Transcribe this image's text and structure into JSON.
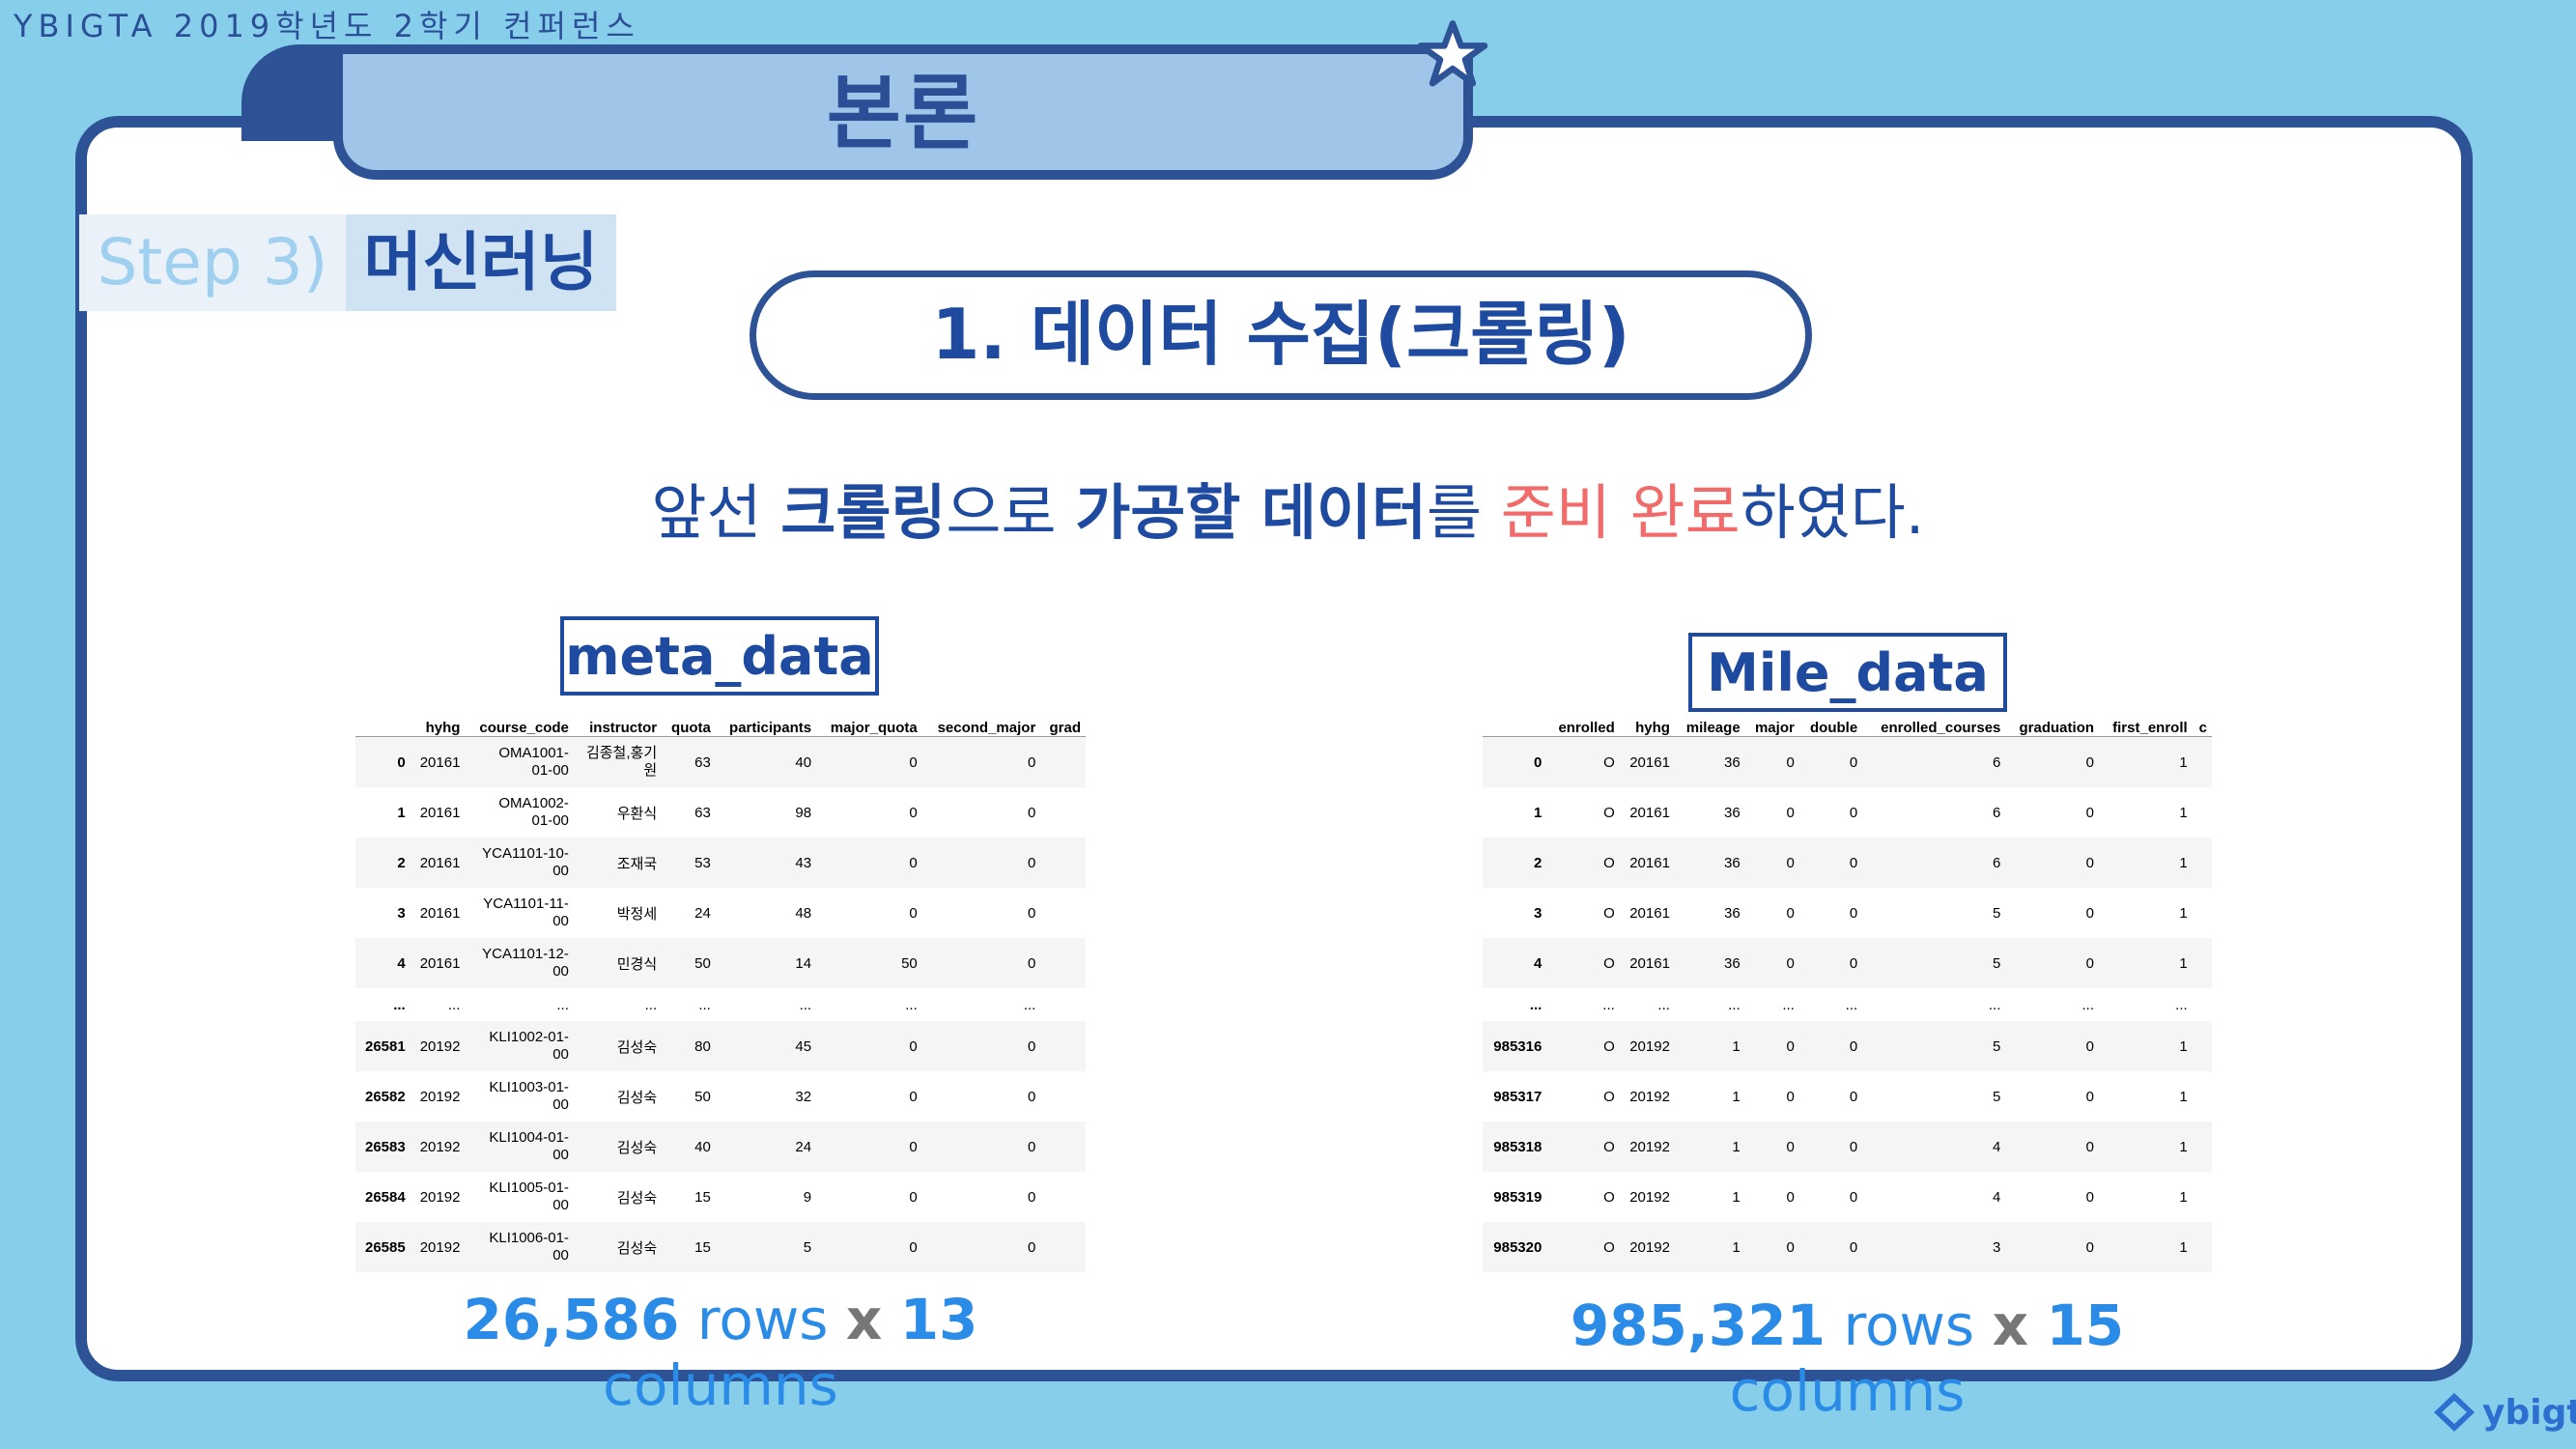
{
  "header": {
    "conference": "YBIGTA 2019학년도 2학기 컨퍼런스",
    "section": "본론"
  },
  "step": {
    "number": "Step 3)",
    "label": "머신러닝"
  },
  "subtitle": "1. 데이터 수집(크롤링)",
  "sentence": {
    "p1": "앞선 ",
    "p2": "크롤링",
    "p3": "으로 ",
    "p4": "가공할 데이터",
    "p5": "를 ",
    "p6": "준비 완료",
    "p7": "하였다."
  },
  "meta": {
    "label": "meta_data",
    "columns": [
      "",
      "hyhg",
      "course_code",
      "instructor",
      "quota",
      "participants",
      "major_quota",
      "second_major",
      "grad"
    ],
    "rows": [
      [
        "0",
        "20161",
        "OMA1001-\n01-00",
        "김종철,홍기\n원",
        "63",
        "40",
        "0",
        "0"
      ],
      [
        "1",
        "20161",
        "OMA1002-\n01-00",
        "우환식",
        "63",
        "98",
        "0",
        "0"
      ],
      [
        "2",
        "20161",
        "YCA1101-10-\n00",
        "조재국",
        "53",
        "43",
        "0",
        "0"
      ],
      [
        "3",
        "20161",
        "YCA1101-11-\n00",
        "박정세",
        "24",
        "48",
        "0",
        "0"
      ],
      [
        "4",
        "20161",
        "YCA1101-12-\n00",
        "민경식",
        "50",
        "14",
        "50",
        "0"
      ],
      [
        "...",
        "...",
        "...",
        "...",
        "...",
        "...",
        "...",
        "..."
      ],
      [
        "26581",
        "20192",
        "KLI1002-01-\n00",
        "김성숙",
        "80",
        "45",
        "0",
        "0"
      ],
      [
        "26582",
        "20192",
        "KLI1003-01-\n00",
        "김성숙",
        "50",
        "32",
        "0",
        "0"
      ],
      [
        "26583",
        "20192",
        "KLI1004-01-\n00",
        "김성숙",
        "40",
        "24",
        "0",
        "0"
      ],
      [
        "26584",
        "20192",
        "KLI1005-01-\n00",
        "김성숙",
        "15",
        "9",
        "0",
        "0"
      ],
      [
        "26585",
        "20192",
        "KLI1006-01-\n00",
        "김성숙",
        "15",
        "5",
        "0",
        "0"
      ]
    ],
    "summary": {
      "rows_n": "26,586",
      "rows_w": "rows",
      "x": "x",
      "cols_n": "13",
      "cols_w": "columns"
    }
  },
  "mile": {
    "label": "Mile_data",
    "columns": [
      "",
      "enrolled",
      "hyhg",
      "mileage",
      "major",
      "double",
      "enrolled_courses",
      "graduation",
      "first_enroll",
      "c"
    ],
    "rows": [
      [
        "0",
        "O",
        "20161",
        "36",
        "0",
        "0",
        "6",
        "0",
        "1"
      ],
      [
        "1",
        "O",
        "20161",
        "36",
        "0",
        "0",
        "6",
        "0",
        "1"
      ],
      [
        "2",
        "O",
        "20161",
        "36",
        "0",
        "0",
        "6",
        "0",
        "1"
      ],
      [
        "3",
        "O",
        "20161",
        "36",
        "0",
        "0",
        "5",
        "0",
        "1"
      ],
      [
        "4",
        "O",
        "20161",
        "36",
        "0",
        "0",
        "5",
        "0",
        "1"
      ],
      [
        "...",
        "...",
        "...",
        "...",
        "...",
        "...",
        "...",
        "...",
        "..."
      ],
      [
        "985316",
        "O",
        "20192",
        "1",
        "0",
        "0",
        "5",
        "0",
        "1"
      ],
      [
        "985317",
        "O",
        "20192",
        "1",
        "0",
        "0",
        "5",
        "0",
        "1"
      ],
      [
        "985318",
        "O",
        "20192",
        "1",
        "0",
        "0",
        "4",
        "0",
        "1"
      ],
      [
        "985319",
        "O",
        "20192",
        "1",
        "0",
        "0",
        "4",
        "0",
        "1"
      ],
      [
        "985320",
        "O",
        "20192",
        "1",
        "0",
        "0",
        "3",
        "0",
        "1"
      ]
    ],
    "summary": {
      "rows_n": "985,321",
      "rows_w": "rows",
      "x": "x",
      "cols_n": "15",
      "cols_w": "columns"
    }
  },
  "logo": {
    "text": "ybigta",
    "icon": "ybigta-logo-icon"
  }
}
